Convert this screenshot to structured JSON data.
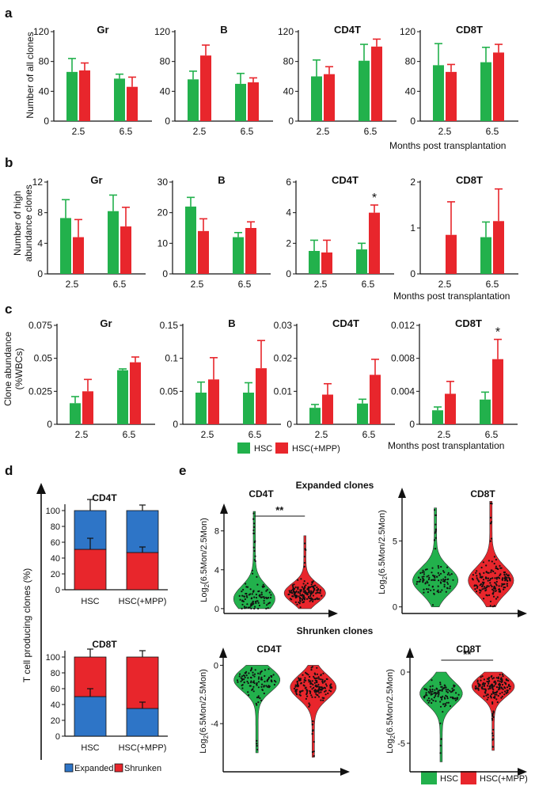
{
  "colors": {
    "hsc": "#22b14c",
    "mpp": "#e8262c",
    "expanded": "#2e75c7",
    "shrunken": "#e8262c",
    "axis": "#111111",
    "dot": "#111111"
  },
  "panel_labels": [
    "a",
    "b",
    "c",
    "d",
    "e"
  ],
  "row_a": {
    "ylabel": "Number of all clones",
    "xnote": "Months post transplantation",
    "charts": [
      {
        "title": "Gr",
        "ticks": [
          "0",
          "40",
          "80",
          "120"
        ]
      },
      {
        "title": "B",
        "ticks": [
          "0",
          "40",
          "80",
          "120"
        ]
      },
      {
        "title": "CD4T",
        "ticks": [
          "0",
          "40",
          "80",
          "120"
        ]
      },
      {
        "title": "CD8T",
        "ticks": [
          "0",
          "40",
          "80",
          "120"
        ]
      }
    ]
  },
  "row_b": {
    "ylabel_line1": "Number of high",
    "ylabel_line2": "abundance clones",
    "xnote": "Months post transplantation",
    "charts": [
      {
        "title": "Gr",
        "ticks": [
          "0",
          "4",
          "8",
          "12"
        ]
      },
      {
        "title": "B",
        "ticks": [
          "0",
          "10",
          "20",
          "30"
        ]
      },
      {
        "title": "CD4T",
        "ticks": [
          "0",
          "2",
          "4",
          "6"
        ]
      },
      {
        "title": "CD8T",
        "ticks": [
          "0",
          "1",
          "2"
        ]
      }
    ]
  },
  "row_c": {
    "ylabel_line1": "Clone abundance",
    "ylabel_line2": "(%WBCs)",
    "xnote": "Months post transplantation",
    "charts": [
      {
        "title": "Gr",
        "ticks": [
          "0",
          "0.025",
          "0.05",
          "0.075"
        ]
      },
      {
        "title": "B",
        "ticks": [
          "0",
          "0.05",
          "0.1",
          "0.15"
        ]
      },
      {
        "title": "CD4T",
        "ticks": [
          "0",
          "0.01",
          "0.02",
          "0.03"
        ]
      },
      {
        "title": "CD8T",
        "ticks": [
          "0",
          "0.004",
          "0.008",
          "0.012"
        ]
      }
    ]
  },
  "legend_ac": {
    "hsc": "HSC",
    "mpp": "HSC(+MPP)"
  },
  "panel_d": {
    "ylabel": "T cell producing clones (%)",
    "charts": [
      {
        "title": "CD4T",
        "ticks": [
          "0",
          "20",
          "40",
          "60",
          "80",
          "100"
        ]
      },
      {
        "title": "CD8T",
        "ticks": [
          "0",
          "20",
          "40",
          "60",
          "80",
          "100"
        ]
      }
    ],
    "legend": {
      "expanded": "Expanded",
      "shrunken": "Shrunken"
    }
  },
  "panel_e": {
    "expanded_heading": "Expanded clones",
    "shrunken_heading": "Shrunken clones",
    "ylabel_pre": "Log",
    "ylabel_sub": "2",
    "ylabel_post": "(6.5Mon/2.5Mon)",
    "charts": [
      {
        "title": "CD4T",
        "ticks": [
          "0",
          "4",
          "8"
        ]
      },
      {
        "title": "CD8T",
        "ticks": [
          "0",
          "5"
        ]
      },
      {
        "title": "CD4T",
        "ticks": [
          "-4",
          "0"
        ]
      },
      {
        "title": "CD8T",
        "ticks": [
          "-5",
          "0"
        ]
      }
    ],
    "legend": {
      "hsc": "HSC",
      "mpp": "HSC(+MPP)"
    }
  },
  "chart_data": [
    {
      "panel": "a",
      "type": "bar",
      "title": "Gr",
      "ylabel": "Number of all clones",
      "xlabel": "Months post transplantation",
      "categories": [
        "2.5",
        "6.5"
      ],
      "ylim": [
        0,
        120
      ],
      "series": [
        {
          "name": "HSC",
          "values": [
            66,
            57
          ],
          "errors": [
            18,
            6
          ]
        },
        {
          "name": "HSC(+MPP)",
          "values": [
            68,
            46
          ],
          "errors": [
            10,
            13
          ]
        }
      ]
    },
    {
      "panel": "a",
      "type": "bar",
      "title": "B",
      "ylabel": "Number of all clones",
      "categories": [
        "2.5",
        "6.5"
      ],
      "ylim": [
        0,
        120
      ],
      "series": [
        {
          "name": "HSC",
          "values": [
            56,
            50
          ],
          "errors": [
            11,
            14
          ]
        },
        {
          "name": "HSC(+MPP)",
          "values": [
            88,
            52
          ],
          "errors": [
            14,
            6
          ]
        }
      ]
    },
    {
      "panel": "a",
      "type": "bar",
      "title": "CD4T",
      "ylabel": "Number of all clones",
      "categories": [
        "2.5",
        "6.5"
      ],
      "ylim": [
        0,
        120
      ],
      "series": [
        {
          "name": "HSC",
          "values": [
            60,
            81
          ],
          "errors": [
            22,
            22
          ]
        },
        {
          "name": "HSC(+MPP)",
          "values": [
            63,
            100
          ],
          "errors": [
            10,
            10
          ]
        }
      ]
    },
    {
      "panel": "a",
      "type": "bar",
      "title": "CD8T",
      "ylabel": "Number of all clones",
      "categories": [
        "2.5",
        "6.5"
      ],
      "ylim": [
        0,
        120
      ],
      "series": [
        {
          "name": "HSC",
          "values": [
            75,
            79
          ],
          "errors": [
            29,
            20
          ]
        },
        {
          "name": "HSC(+MPP)",
          "values": [
            66,
            92
          ],
          "errors": [
            10,
            11
          ]
        }
      ]
    },
    {
      "panel": "b",
      "type": "bar",
      "title": "Gr",
      "ylabel": "Number of high abundance clones",
      "xlabel": "Months post transplantation",
      "categories": [
        "2.5",
        "6.5"
      ],
      "ylim": [
        0,
        12
      ],
      "series": [
        {
          "name": "HSC",
          "values": [
            7.3,
            8.2
          ],
          "errors": [
            2.4,
            2.1
          ]
        },
        {
          "name": "HSC(+MPP)",
          "values": [
            4.8,
            6.2
          ],
          "errors": [
            2.3,
            2.5
          ]
        }
      ]
    },
    {
      "panel": "b",
      "type": "bar",
      "title": "B",
      "ylabel": "Number of high abundance clones",
      "categories": [
        "2.5",
        "6.5"
      ],
      "ylim": [
        0,
        30
      ],
      "series": [
        {
          "name": "HSC",
          "values": [
            22,
            12
          ],
          "errors": [
            3,
            1.5
          ]
        },
        {
          "name": "HSC(+MPP)",
          "values": [
            14,
            15
          ],
          "errors": [
            4,
            2
          ]
        }
      ]
    },
    {
      "panel": "b",
      "type": "bar",
      "title": "CD4T",
      "ylabel": "Number of high abundance clones",
      "categories": [
        "2.5",
        "6.5"
      ],
      "ylim": [
        0,
        6
      ],
      "annotations": [
        {
          "text": "*",
          "category": "6.5",
          "series": "HSC(+MPP)"
        }
      ],
      "series": [
        {
          "name": "HSC",
          "values": [
            1.5,
            1.6
          ],
          "errors": [
            0.7,
            0.4
          ]
        },
        {
          "name": "HSC(+MPP)",
          "values": [
            1.4,
            4.0
          ],
          "errors": [
            0.8,
            0.5
          ]
        }
      ]
    },
    {
      "panel": "b",
      "type": "bar",
      "title": "CD8T",
      "ylabel": "Number of high abundance clones",
      "categories": [
        "2.5",
        "6.5"
      ],
      "ylim": [
        0,
        2
      ],
      "series": [
        {
          "name": "HSC",
          "values": [
            0,
            0.8
          ],
          "errors": [
            0,
            0.33
          ]
        },
        {
          "name": "HSC(+MPP)",
          "values": [
            0.85,
            1.15
          ],
          "errors": [
            0.72,
            0.7
          ]
        }
      ]
    },
    {
      "panel": "c",
      "type": "bar",
      "title": "Gr",
      "ylabel": "Clone abundance (%WBCs)",
      "xlabel": "Months post transplantation",
      "categories": [
        "2.5",
        "6.5"
      ],
      "ylim": [
        0,
        0.075
      ],
      "series": [
        {
          "name": "HSC",
          "values": [
            0.016,
            0.041
          ],
          "errors": [
            0.005,
            0.001
          ]
        },
        {
          "name": "HSC(+MPP)",
          "values": [
            0.025,
            0.047
          ],
          "errors": [
            0.009,
            0.004
          ]
        }
      ]
    },
    {
      "panel": "c",
      "type": "bar",
      "title": "B",
      "ylabel": "Clone abundance (%WBCs)",
      "categories": [
        "2.5",
        "6.5"
      ],
      "ylim": [
        0,
        0.15
      ],
      "series": [
        {
          "name": "HSC",
          "values": [
            0.048,
            0.048
          ],
          "errors": [
            0.016,
            0.015
          ]
        },
        {
          "name": "HSC(+MPP)",
          "values": [
            0.068,
            0.085
          ],
          "errors": [
            0.033,
            0.042
          ]
        }
      ]
    },
    {
      "panel": "c",
      "type": "bar",
      "title": "CD4T",
      "ylabel": "Clone abundance (%WBCs)",
      "categories": [
        "2.5",
        "6.5"
      ],
      "ylim": [
        0,
        0.03
      ],
      "series": [
        {
          "name": "HSC",
          "values": [
            0.005,
            0.0063
          ],
          "errors": [
            0.001,
            0.0013
          ]
        },
        {
          "name": "HSC(+MPP)",
          "values": [
            0.009,
            0.015
          ],
          "errors": [
            0.0033,
            0.0047
          ]
        }
      ]
    },
    {
      "panel": "c",
      "type": "bar",
      "title": "CD8T",
      "ylabel": "Clone abundance (%WBCs)",
      "categories": [
        "2.5",
        "6.5"
      ],
      "ylim": [
        0,
        0.012
      ],
      "annotations": [
        {
          "text": "*",
          "category": "6.5",
          "series": "HSC(+MPP)"
        }
      ],
      "series": [
        {
          "name": "HSC",
          "values": [
            0.0017,
            0.003
          ],
          "errors": [
            0.0004,
            0.0009
          ]
        },
        {
          "name": "HSC(+MPP)",
          "values": [
            0.0037,
            0.0079
          ],
          "errors": [
            0.0015,
            0.0024
          ]
        }
      ]
    },
    {
      "panel": "d",
      "type": "stacked_bar",
      "title": "CD4T",
      "ylabel": "T cell producing clones (%)",
      "categories": [
        "HSC",
        "HSC(+MPP)"
      ],
      "ylim": [
        0,
        100
      ],
      "series": [
        {
          "name": "Shrunken",
          "values": [
            51,
            47
          ],
          "errors": [
            14,
            7
          ]
        },
        {
          "name": "Expanded",
          "values": [
            49,
            53
          ],
          "errors": [
            14,
            7
          ]
        }
      ]
    },
    {
      "panel": "d",
      "type": "stacked_bar",
      "title": "CD8T",
      "ylabel": "T cell producing clones (%)",
      "categories": [
        "HSC",
        "HSC(+MPP)"
      ],
      "ylim": [
        0,
        100
      ],
      "series": [
        {
          "name": "Expanded",
          "values": [
            50,
            35
          ],
          "errors": [
            10,
            8
          ]
        },
        {
          "name": "Shrunken",
          "values": [
            50,
            65
          ],
          "errors": [
            10,
            8
          ]
        }
      ]
    },
    {
      "panel": "e",
      "type": "violin",
      "title": "CD4T",
      "subtitle": "Expanded clones",
      "ylabel": "Log2(6.5Mon/2.5Mon)",
      "categories": [
        "HSC",
        "HSC(+MPP)"
      ],
      "ylim": [
        -0.5,
        10.5
      ],
      "significance": "**",
      "groups": [
        {
          "name": "HSC",
          "range": [
            0,
            10
          ],
          "median": 1.0
        },
        {
          "name": "HSC(+MPP)",
          "range": [
            0,
            7.5
          ],
          "median": 1.6
        }
      ]
    },
    {
      "panel": "e",
      "type": "violin",
      "title": "CD8T",
      "subtitle": "Expanded clones",
      "ylabel": "Log2(6.5Mon/2.5Mon)",
      "categories": [
        "HSC",
        "HSC(+MPP)"
      ],
      "ylim": [
        -0.5,
        8.8
      ],
      "groups": [
        {
          "name": "HSC",
          "range": [
            0,
            7.5
          ],
          "median": 2.0
        },
        {
          "name": "HSC(+MPP)",
          "range": [
            0,
            8.0
          ],
          "median": 2.0
        }
      ]
    },
    {
      "panel": "e",
      "type": "violin",
      "title": "CD4T",
      "subtitle": "Shrunken clones",
      "ylabel": "Log2(6.5Mon/2.5Mon)",
      "categories": [
        "HSC",
        "HSC(+MPP)"
      ],
      "ylim": [
        -7.3,
        1.0
      ],
      "groups": [
        {
          "name": "HSC",
          "range": [
            -6.0,
            0
          ],
          "median": -1.0
        },
        {
          "name": "HSC(+MPP)",
          "range": [
            -6.3,
            0
          ],
          "median": -1.5
        }
      ]
    },
    {
      "panel": "e",
      "type": "violin",
      "title": "CD8T",
      "subtitle": "Shrunken clones",
      "ylabel": "Log2(6.5Mon/2.5Mon)",
      "categories": [
        "HSC",
        "HSC(+MPP)"
      ],
      "ylim": [
        -7.0,
        1.5
      ],
      "significance": "**",
      "groups": [
        {
          "name": "HSC",
          "range": [
            -6.3,
            0
          ],
          "median": -1.5
        },
        {
          "name": "HSC(+MPP)",
          "range": [
            -5.5,
            0
          ],
          "median": -1.0
        }
      ]
    }
  ]
}
